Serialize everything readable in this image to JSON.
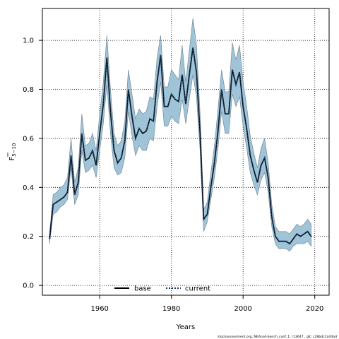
{
  "chart_data": {
    "type": "line",
    "xlabel": "Years",
    "ylabel_main": "F",
    "ylabel_sub": "5−10",
    "xticks": [
      1960,
      1980,
      2000,
      2020
    ],
    "xtick_labels": [
      "1960",
      "1980",
      "2000",
      "2020"
    ],
    "yticks": [
      0.0,
      0.2,
      0.4,
      0.6,
      0.8,
      1.0
    ],
    "ytick_labels": [
      "0.0",
      "0.2",
      "0.4",
      "0.6",
      "0.8",
      "1.0"
    ],
    "xlim": [
      1944,
      2024
    ],
    "ylim": [
      -0.04,
      1.13
    ],
    "grid": true,
    "legend_position": "bottom-center",
    "band_color": "#9fc4d7",
    "band_edge_color": "#6b7f8e",
    "x": [
      1946,
      1947,
      1948,
      1949,
      1950,
      1951,
      1952,
      1953,
      1954,
      1955,
      1956,
      1957,
      1958,
      1959,
      1960,
      1961,
      1962,
      1963,
      1964,
      1965,
      1966,
      1967,
      1968,
      1969,
      1970,
      1971,
      1972,
      1973,
      1974,
      1975,
      1976,
      1977,
      1978,
      1979,
      1980,
      1981,
      1982,
      1983,
      1984,
      1985,
      1986,
      1987,
      1988,
      1989,
      1990,
      1991,
      1992,
      1993,
      1994,
      1995,
      1996,
      1997,
      1998,
      1999,
      2000,
      2001,
      2002,
      2003,
      2004,
      2005,
      2006,
      2007,
      2008,
      2009,
      2010,
      2011,
      2012,
      2013,
      2014,
      2015,
      2016,
      2017,
      2018,
      2019
    ],
    "series": [
      {
        "name": "base",
        "style": "solid",
        "color": "#000000",
        "values": [
          0.19,
          0.33,
          0.34,
          0.35,
          0.36,
          0.38,
          0.53,
          0.37,
          0.42,
          0.62,
          0.51,
          0.52,
          0.55,
          0.49,
          0.62,
          0.74,
          0.93,
          0.71,
          0.55,
          0.5,
          0.52,
          0.59,
          0.8,
          0.69,
          0.6,
          0.64,
          0.62,
          0.63,
          0.68,
          0.67,
          0.83,
          0.94,
          0.73,
          0.73,
          0.78,
          0.76,
          0.75,
          0.86,
          0.74,
          0.86,
          0.97,
          0.87,
          0.62,
          0.27,
          0.29,
          0.4,
          0.5,
          0.63,
          0.8,
          0.7,
          0.7,
          0.88,
          0.82,
          0.87,
          0.73,
          0.64,
          0.53,
          0.47,
          0.42,
          0.49,
          0.52,
          0.44,
          0.28,
          0.2,
          0.18,
          0.18,
          0.18,
          0.17,
          0.19,
          0.21,
          0.2,
          0.21,
          0.22,
          0.2
        ]
      },
      {
        "name": "current",
        "style": "dotted",
        "color": "#1f3a5f",
        "values": [
          0.19,
          0.33,
          0.34,
          0.35,
          0.36,
          0.38,
          0.53,
          0.37,
          0.42,
          0.62,
          0.51,
          0.52,
          0.55,
          0.49,
          0.62,
          0.74,
          0.93,
          0.71,
          0.55,
          0.5,
          0.52,
          0.59,
          0.8,
          0.69,
          0.6,
          0.64,
          0.62,
          0.63,
          0.68,
          0.67,
          0.83,
          0.94,
          0.73,
          0.73,
          0.78,
          0.76,
          0.75,
          0.86,
          0.74,
          0.86,
          0.97,
          0.87,
          0.62,
          0.27,
          0.29,
          0.4,
          0.5,
          0.63,
          0.8,
          0.7,
          0.7,
          0.88,
          0.82,
          0.87,
          0.73,
          0.64,
          0.53,
          0.47,
          0.42,
          0.49,
          0.52,
          0.44,
          0.28,
          0.2,
          0.18,
          0.18,
          0.18,
          0.17,
          0.19,
          0.21,
          0.2,
          0.21,
          0.22,
          0.2
        ]
      }
    ],
    "band_lower": [
      0.17,
      0.29,
      0.3,
      0.32,
      0.33,
      0.35,
      0.48,
      0.33,
      0.37,
      0.55,
      0.46,
      0.47,
      0.49,
      0.44,
      0.55,
      0.66,
      0.82,
      0.62,
      0.48,
      0.45,
      0.46,
      0.52,
      0.71,
      0.61,
      0.53,
      0.57,
      0.55,
      0.55,
      0.6,
      0.59,
      0.73,
      0.83,
      0.65,
      0.65,
      0.69,
      0.67,
      0.66,
      0.76,
      0.66,
      0.76,
      0.86,
      0.77,
      0.55,
      0.22,
      0.26,
      0.35,
      0.44,
      0.56,
      0.71,
      0.62,
      0.62,
      0.78,
      0.73,
      0.77,
      0.65,
      0.56,
      0.46,
      0.41,
      0.37,
      0.43,
      0.46,
      0.38,
      0.24,
      0.17,
      0.15,
      0.15,
      0.15,
      0.14,
      0.16,
      0.17,
      0.17,
      0.17,
      0.18,
      0.16
    ],
    "band_upper": [
      0.21,
      0.37,
      0.38,
      0.4,
      0.41,
      0.44,
      0.6,
      0.42,
      0.48,
      0.7,
      0.57,
      0.58,
      0.62,
      0.55,
      0.7,
      0.83,
      1.02,
      0.8,
      0.62,
      0.57,
      0.59,
      0.67,
      0.88,
      0.78,
      0.68,
      0.72,
      0.7,
      0.71,
      0.77,
      0.76,
      0.93,
      1.02,
      0.81,
      0.81,
      0.88,
      0.86,
      0.84,
      0.98,
      0.83,
      0.96,
      1.09,
      0.98,
      0.7,
      0.31,
      0.34,
      0.46,
      0.57,
      0.72,
      0.88,
      0.79,
      0.79,
      0.99,
      0.92,
      0.98,
      0.83,
      0.73,
      0.61,
      0.54,
      0.48,
      0.56,
      0.6,
      0.5,
      0.33,
      0.24,
      0.22,
      0.22,
      0.22,
      0.21,
      0.23,
      0.25,
      0.24,
      0.25,
      0.27,
      0.25
    ]
  },
  "footnote": "stockassessment.org,  NEAcod-bench_conf_1,  r13647 ,  git: c28bdc2a44ad"
}
